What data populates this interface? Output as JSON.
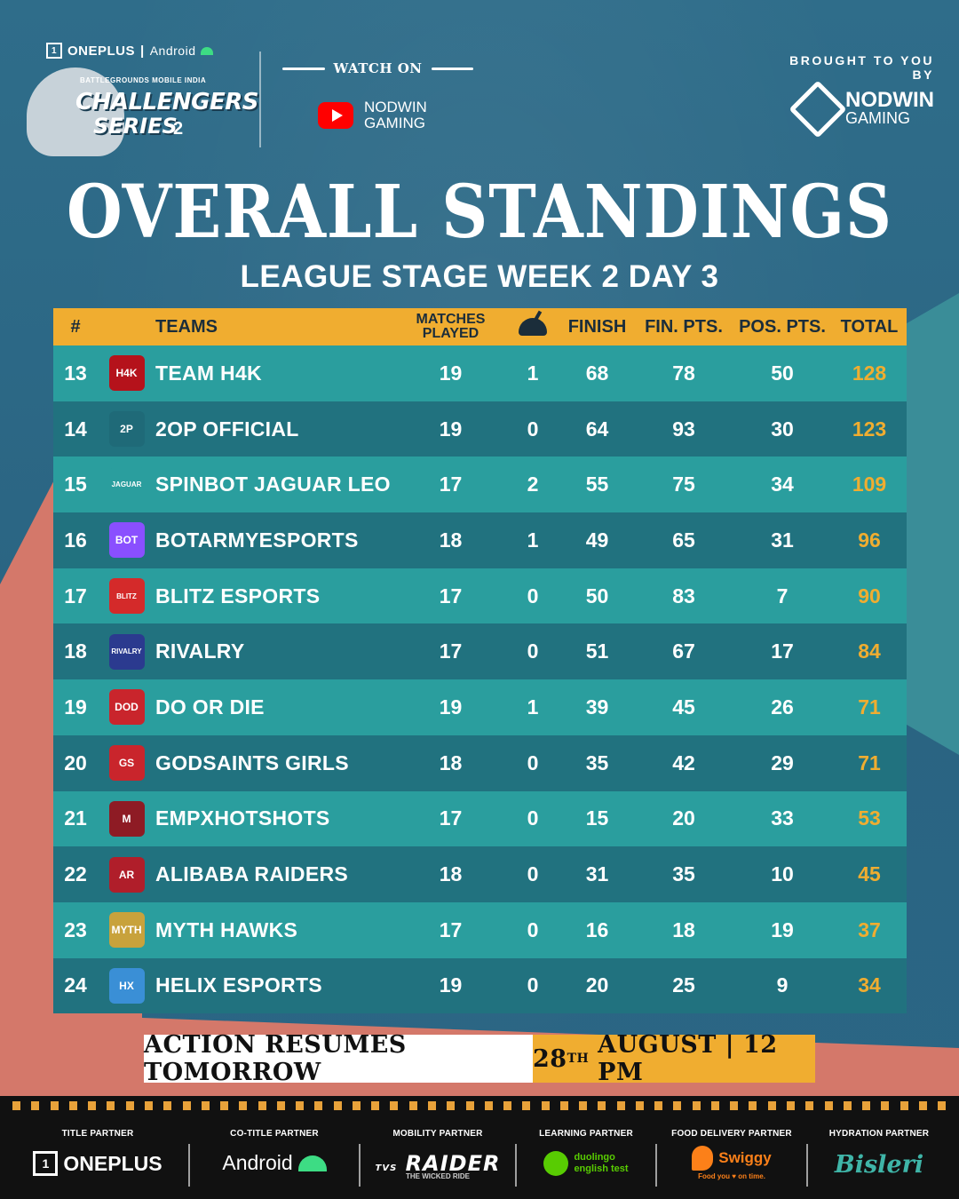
{
  "header": {
    "oneplus_brand": "ONEPLUS",
    "separator": "|",
    "android_brand": "Android",
    "series_small": "BATTLEGROUNDS MOBILE INDIA",
    "series_big": "CHALLENGERS",
    "series_sub": "SERIES",
    "series_number": "2",
    "watch_label": "WATCH ON",
    "channel_line1": "NODWIN",
    "channel_line2": "GAMING",
    "brought_label": "BROUGHT TO YOU BY",
    "sponsor_big": "NODWIN",
    "sponsor_small": "GAMING"
  },
  "title": "OVERALL STANDINGS",
  "subtitle": "LEAGUE STAGE WEEK 2 DAY 3",
  "table": {
    "headers": {
      "rank": "#",
      "team": "TEAMS",
      "matches_line1": "MATCHES",
      "matches_line2": "PLAYED",
      "finish": "FINISH",
      "fin_pts": "FIN. PTS.",
      "pos_pts": "POS. PTS.",
      "total": "TOTAL"
    },
    "rows": [
      {
        "rank": "13",
        "logo": "H4K",
        "logo_color": "#b5121b",
        "team": "TEAM H4K",
        "matches": "19",
        "chickens": "1",
        "finish": "68",
        "fin_pts": "78",
        "pos_pts": "50",
        "total": "128"
      },
      {
        "rank": "14",
        "logo": "2P",
        "logo_color": "#1f6a78",
        "team": "2OP OFFICIAL",
        "matches": "19",
        "chickens": "0",
        "finish": "64",
        "fin_pts": "93",
        "pos_pts": "30",
        "total": "123"
      },
      {
        "rank": "15",
        "logo": "JAGUAR",
        "logo_color": "#2a9e9e",
        "team": "SPINBOT JAGUAR LEO",
        "matches": "17",
        "chickens": "2",
        "finish": "55",
        "fin_pts": "75",
        "pos_pts": "34",
        "total": "109"
      },
      {
        "rank": "16",
        "logo": "BOT",
        "logo_color": "#8a4fff",
        "team": "BOTARMYESPORTS",
        "matches": "18",
        "chickens": "1",
        "finish": "49",
        "fin_pts": "65",
        "pos_pts": "31",
        "total": "96"
      },
      {
        "rank": "17",
        "logo": "BLITZ",
        "logo_color": "#d42a2a",
        "team": "BLITZ ESPORTS",
        "matches": "17",
        "chickens": "0",
        "finish": "50",
        "fin_pts": "83",
        "pos_pts": "7",
        "total": "90"
      },
      {
        "rank": "18",
        "logo": "RIVALRY",
        "logo_color": "#2b3a8f",
        "team": "RIVALRY",
        "matches": "17",
        "chickens": "0",
        "finish": "51",
        "fin_pts": "67",
        "pos_pts": "17",
        "total": "84"
      },
      {
        "rank": "19",
        "logo": "DOD",
        "logo_color": "#c9252c",
        "team": "DO OR DIE",
        "matches": "19",
        "chickens": "1",
        "finish": "39",
        "fin_pts": "45",
        "pos_pts": "26",
        "total": "71"
      },
      {
        "rank": "20",
        "logo": "GS",
        "logo_color": "#c9252c",
        "team": "GODSAINTS  GIRLS",
        "matches": "18",
        "chickens": "0",
        "finish": "35",
        "fin_pts": "42",
        "pos_pts": "29",
        "total": "71"
      },
      {
        "rank": "21",
        "logo": "M",
        "logo_color": "#8e1b24",
        "team": "EMPXHOTSHOTS",
        "matches": "17",
        "chickens": "0",
        "finish": "15",
        "fin_pts": "20",
        "pos_pts": "33",
        "total": "53"
      },
      {
        "rank": "22",
        "logo": "AR",
        "logo_color": "#b01e2a",
        "team": "ALIBABA RAIDERS",
        "matches": "18",
        "chickens": "0",
        "finish": "31",
        "fin_pts": "35",
        "pos_pts": "10",
        "total": "45"
      },
      {
        "rank": "23",
        "logo": "MYTH",
        "logo_color": "#c8a23c",
        "team": "MYTH HAWKS",
        "matches": "17",
        "chickens": "0",
        "finish": "16",
        "fin_pts": "18",
        "pos_pts": "19",
        "total": "37"
      },
      {
        "rank": "24",
        "logo": "HX",
        "logo_color": "#3a8fd6",
        "team": "HELIX ESPORTS",
        "matches": "19",
        "chickens": "0",
        "finish": "20",
        "fin_pts": "25",
        "pos_pts": "9",
        "total": "34"
      }
    ]
  },
  "banner": {
    "left": "ACTION RESUMES TOMORROW",
    "date_num": "28",
    "date_sup": "TH",
    "date_rest": "AUGUST | 12 PM"
  },
  "partners": [
    {
      "label": "TITLE PARTNER",
      "name": "ONEPLUS"
    },
    {
      "label": "CO-TITLE PARTNER",
      "name": "Android"
    },
    {
      "label": "MOBILITY PARTNER",
      "name": "RAIDER",
      "sub": "THE WICKED RIDE",
      "prefix": "TVS"
    },
    {
      "label": "LEARNING PARTNER",
      "name_line1": "duolingo",
      "name_line2": "english test"
    },
    {
      "label": "FOOD DELIVERY PARTNER",
      "name": "Swiggy",
      "sub": "Food you ♥ on time."
    },
    {
      "label": "HYDRATION PARTNER",
      "name": "Bisleri"
    }
  ]
}
